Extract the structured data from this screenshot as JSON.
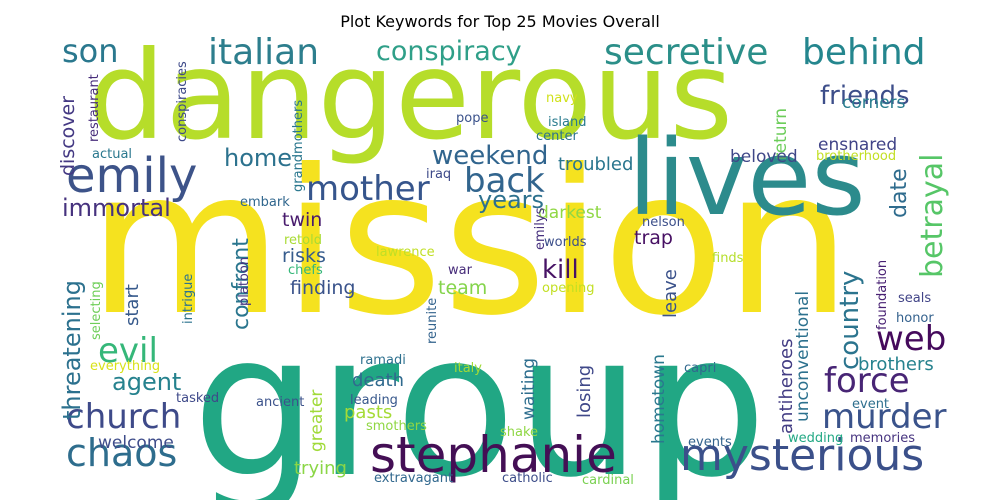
{
  "chart_data": {
    "type": "wordcloud",
    "title": "Plot Keywords for Top 25 Movies Overall",
    "palette": "viridis",
    "words": [
      {
        "text": "mission",
        "size": 5,
        "color": "#f5e21f"
      },
      {
        "text": "group",
        "size": 5,
        "color": "#21a784"
      },
      {
        "text": "dangerous",
        "size": 5,
        "color": "#b6dd2a"
      },
      {
        "text": "lives",
        "size": 4.5,
        "color": "#2c8b8c"
      },
      {
        "text": "stephanie",
        "size": 3,
        "color": "#440f55"
      },
      {
        "text": "mysterious",
        "size": 3,
        "color": "#3b508a"
      },
      {
        "text": "emily",
        "size": 3,
        "color": "#3d5389"
      },
      {
        "text": "secretive",
        "size": 2.5,
        "color": "#2b8f89"
      },
      {
        "text": "italian",
        "size": 2.5,
        "color": "#2d7e8d"
      },
      {
        "text": "behind",
        "size": 2.5,
        "color": "#24868e"
      },
      {
        "text": "chaos",
        "size": 2.5,
        "color": "#2e6d8d"
      },
      {
        "text": "church",
        "size": 2.5,
        "color": "#3e4a89"
      },
      {
        "text": "murder",
        "size": 2.5,
        "color": "#3a538b"
      },
      {
        "text": "mother",
        "size": 2.5,
        "color": "#36558c"
      },
      {
        "text": "force",
        "size": 2.5,
        "color": "#482575"
      },
      {
        "text": "evil",
        "size": 2.5,
        "color": "#35b779"
      },
      {
        "text": "web",
        "size": 2.5,
        "color": "#450a5c"
      },
      {
        "text": "back",
        "size": 2.5,
        "color": "#32658e"
      },
      {
        "text": "betrayal",
        "size": 2.5,
        "color": "#56c667"
      },
      {
        "text": "son",
        "size": 2.5,
        "color": "#2a788e"
      },
      {
        "text": "conspiracy",
        "size": 2,
        "color": "#2f9f88"
      },
      {
        "text": "weekend",
        "size": 2,
        "color": "#31658e"
      },
      {
        "text": "friends",
        "size": 2,
        "color": "#3d4e8a"
      },
      {
        "text": "country",
        "size": 2,
        "color": "#2b748e"
      },
      {
        "text": "agent",
        "size": 2,
        "color": "#26828e"
      },
      {
        "text": "threatening",
        "size": 2,
        "color": "#2c718e"
      },
      {
        "text": "immortal",
        "size": 2,
        "color": "#46327e"
      },
      {
        "text": "years",
        "size": 2,
        "color": "#2d718e"
      },
      {
        "text": "kill",
        "size": 2,
        "color": "#471365"
      },
      {
        "text": "home",
        "size": 2,
        "color": "#2c728e"
      },
      {
        "text": "date",
        "size": 2,
        "color": "#2f6c8e"
      },
      {
        "text": "confront",
        "size": 2,
        "color": "#2a768e"
      },
      {
        "text": "discover",
        "size": 1.6,
        "color": "#443983"
      },
      {
        "text": "corners",
        "size": 1.6,
        "color": "#287d8e"
      },
      {
        "text": "ensnared",
        "size": 1.6,
        "color": "#404387"
      },
      {
        "text": "return",
        "size": 1.6,
        "color": "#6ccd5a"
      },
      {
        "text": "troubled",
        "size": 1.6,
        "color": "#2a768e"
      },
      {
        "text": "beloved",
        "size": 1.6,
        "color": "#3f4788"
      },
      {
        "text": "darkest",
        "size": 1.6,
        "color": "#8fd744"
      },
      {
        "text": "twin",
        "size": 1.6,
        "color": "#481b6d"
      },
      {
        "text": "trap",
        "size": 1.6,
        "color": "#471063"
      },
      {
        "text": "risks",
        "size": 1.6,
        "color": "#365c8d"
      },
      {
        "text": "finding",
        "size": 1.6,
        "color": "#3a538b"
      },
      {
        "text": "team",
        "size": 1.6,
        "color": "#84d44b"
      },
      {
        "text": "start",
        "size": 1.6,
        "color": "#375a8c"
      },
      {
        "text": "leave",
        "size": 1.6,
        "color": "#3b528b"
      },
      {
        "text": "unconventional",
        "size": 1.6,
        "color": "#2c718e"
      },
      {
        "text": "brothers",
        "size": 1.6,
        "color": "#26828e"
      },
      {
        "text": "antiheroes",
        "size": 1.6,
        "color": "#433d84"
      },
      {
        "text": "waiting",
        "size": 1.6,
        "color": "#2e6e8e"
      },
      {
        "text": "losing",
        "size": 1.6,
        "color": "#3f4889"
      },
      {
        "text": "death",
        "size": 1.6,
        "color": "#306a8e"
      },
      {
        "text": "pasts",
        "size": 1.6,
        "color": "#a5db36"
      },
      {
        "text": "hometown",
        "size": 1.6,
        "color": "#2a788e"
      },
      {
        "text": "greater",
        "size": 1.6,
        "color": "#a0da39"
      },
      {
        "text": "welcome",
        "size": 1.6,
        "color": "#3e4c8a"
      },
      {
        "text": "trying",
        "size": 1.6,
        "color": "#8bd646"
      },
      {
        "text": "foundation",
        "size": 1.1,
        "color": "#482173"
      },
      {
        "text": "seals",
        "size": 1.1,
        "color": "#414487"
      },
      {
        "text": "honor",
        "size": 1.1,
        "color": "#34618d"
      },
      {
        "text": "brotherhood",
        "size": 1.1,
        "color": "#c2df23"
      },
      {
        "text": "navy",
        "size": 1.1,
        "color": "#d0e11c"
      },
      {
        "text": "island",
        "size": 1.1,
        "color": "#297b8e"
      },
      {
        "text": "pope",
        "size": 1.1,
        "color": "#3b528b"
      },
      {
        "text": "center",
        "size": 1.1,
        "color": "#2c728e"
      },
      {
        "text": "iraq",
        "size": 1.1,
        "color": "#3e4a89"
      },
      {
        "text": "emilys",
        "size": 1.1,
        "color": "#46307e"
      },
      {
        "text": "nelson",
        "size": 1.1,
        "color": "#3c4f8a"
      },
      {
        "text": "restaurant",
        "size": 1.1,
        "color": "#472d7b"
      },
      {
        "text": "conspiracies",
        "size": 1.1,
        "color": "#3e4a89"
      },
      {
        "text": "actual",
        "size": 1.1,
        "color": "#2a788e"
      },
      {
        "text": "grandmothers",
        "size": 1.1,
        "color": "#2a778e"
      },
      {
        "text": "embark",
        "size": 1.1,
        "color": "#31678e"
      },
      {
        "text": "retold",
        "size": 1.1,
        "color": "#a8db34"
      },
      {
        "text": "lawrence",
        "size": 1.1,
        "color": "#c0df25"
      },
      {
        "text": "worlds",
        "size": 1.1,
        "color": "#3c4f8a"
      },
      {
        "text": "finds",
        "size": 1.1,
        "color": "#b5de2b"
      },
      {
        "text": "chefs",
        "size": 1.1,
        "color": "#35b779"
      },
      {
        "text": "war",
        "size": 1.1,
        "color": "#472c7a"
      },
      {
        "text": "platoon",
        "size": 1.1,
        "color": "#453781"
      },
      {
        "text": "intrigue",
        "size": 1.1,
        "color": "#2c738e"
      },
      {
        "text": "reunite",
        "size": 1.1,
        "color": "#33638d"
      },
      {
        "text": "opening",
        "size": 1.1,
        "color": "#c2df23"
      },
      {
        "text": "selecting",
        "size": 1.1,
        "color": "#6ece58"
      },
      {
        "text": "everything",
        "size": 1.1,
        "color": "#d8e219"
      },
      {
        "text": "tasked",
        "size": 1.1,
        "color": "#3e4989"
      },
      {
        "text": "ramadi",
        "size": 1.1,
        "color": "#2d708e"
      },
      {
        "text": "leading",
        "size": 1.1,
        "color": "#38588c"
      },
      {
        "text": "italy",
        "size": 1.1,
        "color": "#a2da37"
      },
      {
        "text": "capri",
        "size": 1.1,
        "color": "#31688e"
      },
      {
        "text": "ancient",
        "size": 1.1,
        "color": "#3b528b"
      },
      {
        "text": "event",
        "size": 1.1,
        "color": "#2e6f8e"
      },
      {
        "text": "smothers",
        "size": 1.1,
        "color": "#90d743"
      },
      {
        "text": "shake",
        "size": 1.1,
        "color": "#8fd744"
      },
      {
        "text": "events",
        "size": 1.1,
        "color": "#33638d"
      },
      {
        "text": "wedding",
        "size": 1.1,
        "color": "#22a884"
      },
      {
        "text": "memories",
        "size": 1.1,
        "color": "#46337f"
      },
      {
        "text": "extravagant",
        "size": 1.1,
        "color": "#31688e"
      },
      {
        "text": "catholic",
        "size": 1.1,
        "color": "#3d4e8a"
      },
      {
        "text": "cardinal",
        "size": 1.1,
        "color": "#7ad151"
      }
    ]
  }
}
